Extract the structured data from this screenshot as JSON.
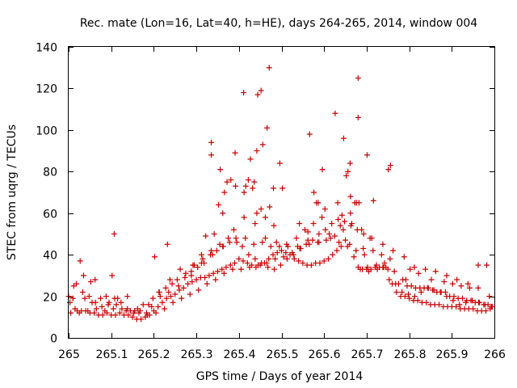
{
  "chart_data": {
    "type": "scatter",
    "title": "Rec. mate (Lon=16, Lat=40, h=HE), days 264-265, 2014, window 004",
    "xlabel": "GPS time / Days of year 2014",
    "ylabel": "STEC from uqrg / TECUs",
    "xlim": [
      265,
      266
    ],
    "ylim": [
      0,
      140
    ],
    "x_ticks": [
      265,
      265.1,
      265.2,
      265.3,
      265.4,
      265.5,
      265.6,
      265.7,
      265.8,
      265.9,
      266
    ],
    "x_tick_labels": [
      "265",
      "265.1",
      "265.2",
      "265.3",
      "265.4",
      "265.5",
      "265.6",
      "265.7",
      "265.8",
      "265.9",
      "266"
    ],
    "y_ticks": [
      0,
      20,
      40,
      60,
      80,
      100,
      120,
      140
    ],
    "y_tick_labels": [
      "0",
      "20",
      "40",
      "60",
      "80",
      "100",
      "120",
      "140"
    ],
    "grid": false,
    "legend": "none",
    "marker": "+",
    "color": "#cc0000",
    "series": [
      {
        "x": [
          265.0,
          265.01,
          265.02,
          265.03,
          265.04,
          265.05,
          265.06,
          265.07,
          265.08,
          265.09,
          265.1,
          265.11,
          265.12,
          265.13,
          265.14,
          265.15,
          265.16,
          265.17,
          265.18,
          265.19,
          265.2,
          265.21,
          265.22,
          265.23,
          265.24,
          265.25,
          265.26,
          265.27,
          265.28,
          265.29,
          265.3,
          265.31,
          265.32,
          265.33,
          265.34,
          265.35,
          265.36,
          265.37,
          265.38,
          265.39,
          265.4,
          265.41,
          265.42,
          265.43,
          265.44,
          265.45,
          265.46,
          265.47,
          265.48,
          265.49,
          265.5,
          265.51,
          265.52,
          265.53,
          265.54,
          265.55,
          265.56,
          265.57,
          265.58,
          265.59,
          265.6,
          265.61,
          265.62,
          265.63,
          265.64,
          265.65,
          265.66,
          265.67,
          265.68,
          265.69,
          265.7,
          265.71,
          265.72,
          265.73,
          265.74,
          265.75,
          265.76,
          265.77,
          265.78,
          265.79,
          265.8,
          265.81,
          265.82,
          265.83,
          265.84,
          265.85,
          265.86,
          265.87,
          265.88,
          265.89,
          265.9,
          265.91,
          265.92,
          265.93,
          265.94,
          265.95,
          265.96,
          265.97,
          265.98,
          265.99,
          265.005,
          265.025,
          265.045,
          265.065,
          265.085,
          265.105,
          265.125,
          265.145,
          265.165,
          265.185,
          265.205,
          265.225,
          265.245,
          265.265,
          265.285,
          265.305,
          265.325,
          265.345,
          265.365,
          265.385,
          265.405,
          265.425,
          265.445,
          265.465,
          265.485,
          265.505,
          265.525,
          265.545,
          265.565,
          265.585,
          265.605,
          265.625,
          265.645,
          265.665,
          265.685,
          265.705,
          265.725,
          265.745,
          265.765,
          265.785,
          265.805,
          265.825,
          265.845,
          265.865,
          265.885,
          265.905,
          265.925,
          265.945,
          265.965,
          265.985,
          265.003,
          265.018,
          265.033,
          265.048,
          265.063,
          265.078,
          265.093,
          265.108,
          265.123,
          265.138,
          265.153,
          265.168,
          265.183,
          265.198,
          265.213,
          265.228,
          265.243,
          265.258,
          265.273,
          265.288,
          265.303,
          265.318,
          265.333,
          265.348,
          265.363,
          265.378,
          265.393,
          265.408,
          265.423,
          265.438,
          265.453,
          265.468,
          265.483,
          265.498,
          265.513,
          265.528,
          265.543,
          265.558,
          265.573,
          265.588,
          265.603,
          265.618,
          265.633,
          265.648,
          265.663,
          265.678,
          265.693,
          265.708,
          265.723,
          265.738,
          265.753,
          265.768,
          265.783,
          265.798,
          265.813,
          265.828,
          265.843,
          265.858,
          265.873,
          265.888,
          265.903,
          265.918,
          265.933,
          265.948,
          265.963,
          265.978,
          265.993,
          265.015,
          265.035,
          265.055,
          265.075,
          265.095,
          265.115,
          265.135,
          265.155,
          265.175,
          265.195,
          265.215,
          265.235,
          265.255,
          265.275,
          265.295,
          265.315,
          265.335,
          265.355,
          265.375,
          265.395,
          265.415,
          265.435,
          265.455,
          265.475,
          265.495,
          265.515,
          265.535,
          265.555,
          265.575,
          265.595,
          265.615,
          265.635,
          265.655,
          265.675,
          265.695,
          265.715,
          265.735,
          265.755,
          265.775,
          265.795,
          265.815,
          265.835,
          265.855,
          265.875,
          265.895,
          265.915,
          265.935,
          265.955,
          265.975,
          265.995,
          265.012,
          265.038,
          265.062,
          265.088,
          265.112,
          265.138,
          265.162,
          265.188,
          265.212,
          265.238,
          265.262,
          265.288,
          265.312,
          265.338,
          265.362,
          265.388,
          265.412,
          265.438,
          265.462,
          265.488,
          265.512,
          265.538,
          265.562,
          265.588,
          265.612,
          265.638,
          265.662,
          265.688,
          265.712,
          265.738,
          265.762,
          265.788,
          265.812,
          265.838,
          265.862,
          265.888,
          265.912,
          265.938,
          265.962,
          265.988,
          265.027,
          265.052,
          265.102,
          265.202,
          265.232,
          265.292,
          265.312,
          265.322,
          265.342,
          265.352,
          265.362,
          265.372,
          265.392,
          265.412,
          265.422,
          265.432,
          265.442,
          265.452,
          265.462,
          265.472,
          265.482,
          265.502,
          265.542,
          265.562,
          265.582,
          265.602,
          265.632,
          265.642,
          265.652,
          265.662,
          265.672,
          265.682,
          265.692,
          265.702,
          265.742,
          265.792,
          265.802,
          265.822,
          265.852,
          265.882,
          265.902,
          265.922,
          265.942,
          265.962,
          265.982
        ],
        "y": [
          20,
          19,
          13,
          13,
          13,
          12,
          12,
          11,
          11,
          12,
          11,
          11,
          12,
          11,
          11,
          10,
          9,
          9,
          10,
          11,
          13,
          15,
          17,
          19,
          20,
          21,
          23,
          24,
          26,
          27,
          28,
          29,
          29,
          30,
          31,
          32,
          33,
          34,
          35,
          36,
          38,
          37,
          36,
          35,
          34,
          35,
          36,
          38,
          40,
          41,
          42,
          41,
          40,
          38,
          37,
          36,
          35,
          35,
          36,
          36,
          37,
          38,
          40,
          42,
          44,
          47,
          45,
          39,
          34,
          33,
          33,
          33,
          34,
          34,
          34,
          33,
          26,
          22,
          20,
          20,
          19,
          18,
          18,
          17,
          17,
          16,
          16,
          16,
          15,
          15,
          15,
          15,
          14,
          14,
          14,
          14,
          13,
          13,
          13,
          14,
          12,
          12,
          13,
          14,
          13,
          14,
          14,
          13,
          12,
          11,
          12,
          14,
          17,
          19,
          21,
          23,
          26,
          28,
          31,
          33,
          33,
          34,
          35,
          36,
          38,
          39,
          41,
          43,
          45,
          46,
          47,
          49,
          52,
          55,
          33,
          32,
          33,
          34,
          32,
          28,
          25,
          24,
          24,
          22,
          22,
          20,
          19,
          18,
          17,
          16,
          17,
          26,
          22,
          20,
          17,
          15,
          16,
          19,
          17,
          14,
          12,
          13,
          12,
          19,
          22,
          24,
          26,
          25,
          29,
          32,
          34,
          36,
          40,
          42,
          44,
          46,
          48,
          44,
          40,
          38,
          36,
          34,
          33,
          35,
          38,
          40,
          43,
          45,
          47,
          50,
          52,
          55,
          57,
          56,
          54,
          52,
          50,
          48,
          35,
          34,
          28,
          26,
          22,
          21,
          20,
          22,
          24,
          23,
          22,
          20,
          18,
          16,
          17,
          18,
          17,
          16,
          15,
          14,
          30,
          17,
          19,
          17,
          19,
          13,
          13,
          16,
          15,
          20,
          22,
          28,
          31,
          35,
          38,
          42,
          45,
          48,
          46,
          48,
          45,
          46,
          44,
          44,
          44,
          48,
          52,
          55,
          58,
          48,
          46,
          44,
          42,
          40,
          42,
          40,
          38,
          26,
          25,
          24,
          24,
          23,
          22,
          20,
          19,
          18,
          17,
          16,
          15,
          25,
          19,
          28,
          20,
          16,
          20,
          14,
          16,
          22,
          28,
          33,
          30,
          36,
          40,
          44,
          52,
          58,
          55,
          48,
          46,
          45,
          44,
          47,
          46,
          50,
          54,
          60,
          52,
          48,
          45,
          42,
          39,
          34,
          33,
          32,
          30,
          28,
          26,
          24,
          20,
          37,
          27,
          30,
          39,
          45,
          35,
          40,
          49,
          50,
          64,
          60,
          75,
          73,
          70,
          76,
          72,
          60,
          62,
          58,
          63,
          54,
          72,
          55,
          51,
          65,
          62,
          65,
          59,
          78,
          68,
          65,
          65,
          43,
          34,
          36,
          28,
          33,
          31,
          28,
          27,
          26,
          25,
          24,
          35,
          35
        ]
      },
      {
        "x": [
          265.107,
          265.335,
          265.335,
          265.356,
          265.366,
          265.381,
          265.391,
          265.411,
          265.416,
          265.427,
          265.436,
          265.442,
          265.444,
          265.452,
          265.456,
          265.466,
          265.471,
          265.481,
          265.496,
          265.566,
          265.576,
          265.586,
          265.596,
          265.626,
          265.646,
          265.656,
          265.661,
          265.676,
          265.68,
          265.68,
          265.701,
          265.716,
          265.756,
          265.751
        ],
        "y": [
          50,
          94,
          88,
          81,
          70,
          76,
          89,
          118,
          73,
          86,
          75,
          90,
          117,
          119,
          93,
          101,
          130,
          72,
          84,
          98,
          70,
          65,
          81,
          108,
          96,
          80,
          84,
          65,
          106,
          125,
          88,
          66,
          83,
          81
        ]
      }
    ]
  }
}
